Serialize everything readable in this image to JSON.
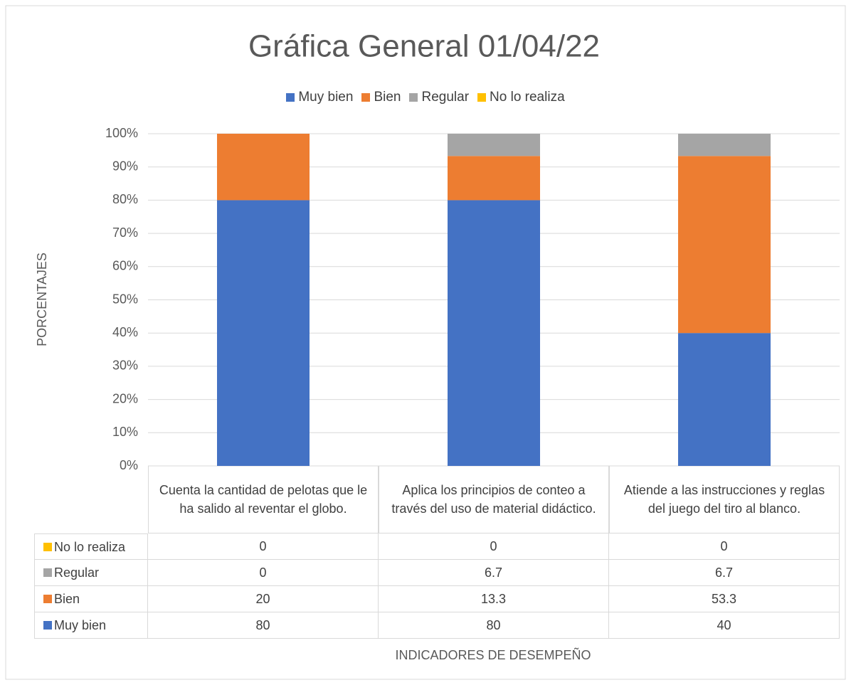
{
  "chart_data": {
    "type": "bar",
    "stacked": true,
    "title": "Gráfica General 01/04/22",
    "y_label": "PORCENTAJES",
    "x_label": "INDICADORES DE DESEMPEÑO",
    "categories": [
      "Cuenta la cantidad de pelotas que le ha salido al reventar el globo.",
      "Aplica los principios de conteo a través del uso de material didáctico.",
      "Atiende a las instrucciones y reglas del juego del tiro al blanco."
    ],
    "series": [
      {
        "name": "Muy bien",
        "color": "#4472c4",
        "values": [
          80,
          80,
          40
        ]
      },
      {
        "name": "Bien",
        "color": "#ed7d31",
        "values": [
          20,
          13.3,
          53.3
        ]
      },
      {
        "name": "Regular",
        "color": "#a5a5a5",
        "values": [
          0,
          6.7,
          6.7
        ]
      },
      {
        "name": "No lo realiza",
        "color": "#ffc000",
        "values": [
          0,
          0,
          0
        ]
      }
    ],
    "ylim": [
      0,
      100
    ],
    "yticks": [
      {
        "value": 0,
        "label": "0%"
      },
      {
        "value": 10,
        "label": "10%"
      },
      {
        "value": 20,
        "label": "20%"
      },
      {
        "value": 30,
        "label": "30%"
      },
      {
        "value": 40,
        "label": "40%"
      },
      {
        "value": 50,
        "label": "50%"
      },
      {
        "value": 60,
        "label": "60%"
      },
      {
        "value": 70,
        "label": "70%"
      },
      {
        "value": 80,
        "label": "80%"
      },
      {
        "value": 90,
        "label": "90%"
      },
      {
        "value": 100,
        "label": "100%"
      }
    ],
    "grid": true,
    "legend": "top"
  }
}
